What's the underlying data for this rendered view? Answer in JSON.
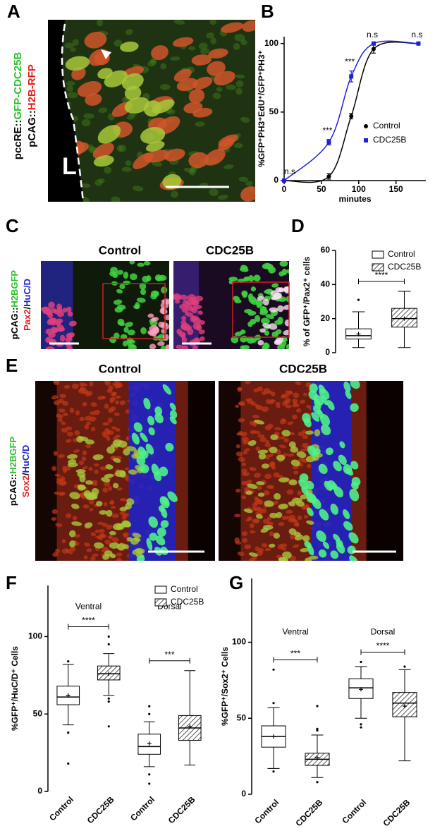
{
  "panel_letters": [
    "A",
    "B",
    "C",
    "D",
    "E",
    "F",
    "G"
  ],
  "panel_a": {
    "labels": [
      [
        "pccRE::",
        "GFP-CDC25B"
      ],
      [
        "pCAG::",
        "H2B-RFP"
      ]
    ],
    "side": "L"
  },
  "panel_c": {
    "titles": [
      "Control",
      "CDC25B"
    ],
    "labels": [
      [
        "pCAG::",
        "H2BGFP"
      ],
      [
        "Pax2",
        "/",
        "HuC/D"
      ]
    ]
  },
  "panel_e": {
    "titles": [
      "Control",
      "CDC25B"
    ],
    "labels": [
      [
        "pCAG::",
        "H2BGFP"
      ],
      [
        "Sox2",
        "/",
        "HuC/D"
      ]
    ]
  },
  "chart_data": [
    {
      "type": "line",
      "y_label": "%GFP⁺PH3⁺EdU⁺/GFP⁺PH3⁺",
      "x_label": "minutes",
      "xlim": [
        0,
        190
      ],
      "xticks": [
        0,
        50,
        100,
        150
      ],
      "ylim": [
        0,
        105
      ],
      "yticks": [
        0,
        50,
        100
      ],
      "legend": "center right",
      "annotations": [
        "n.s",
        "***",
        "***",
        "n.s",
        "n.s"
      ],
      "series": [
        {
          "name": "Control",
          "color": "#000000",
          "marker": "circle",
          "x": [
            0,
            60,
            90,
            120,
            180
          ],
          "values": [
            0,
            3,
            47,
            96,
            100
          ],
          "errors": [
            0,
            2,
            2,
            3,
            0
          ]
        },
        {
          "name": "CDC25B",
          "color": "#1f1fd6",
          "marker": "square",
          "x": [
            0,
            60,
            90,
            120,
            180
          ],
          "values": [
            0,
            28,
            76,
            100,
            100
          ],
          "errors": [
            0,
            2,
            4,
            0,
            0
          ]
        }
      ]
    },
    {
      "type": "box",
      "y_label": "% of GFP⁺/Pax2⁺ cells",
      "ylim": [
        0,
        60
      ],
      "yticks": [
        0,
        20,
        40,
        60
      ],
      "legend": "upper right",
      "significance": [
        "****"
      ],
      "series": [
        {
          "name": "Control",
          "pattern": "open",
          "stats": [
            {
              "low": 3,
              "q1": 8,
              "median": 10,
              "q3": 14,
              "high": 24,
              "mean": 11,
              "outliers": [
                31
              ]
            }
          ]
        },
        {
          "name": "CDC25B",
          "pattern": "hatched",
          "stats": [
            {
              "low": 3,
              "q1": 15,
              "median": 20,
              "q3": 26,
              "high": 36,
              "mean": 20,
              "outliers": []
            }
          ]
        }
      ]
    },
    {
      "type": "box",
      "y_label": "%GFP⁺/HuC/D⁺ Cells",
      "ylim": [
        0,
        133
      ],
      "yticks": [
        0,
        50,
        100
      ],
      "legend": "upper right",
      "groups": [
        "Ventral",
        "Dorsal"
      ],
      "significance": [
        "****",
        "***"
      ],
      "categories": [
        "Control",
        "CDC25B",
        "Control",
        "CDC25B"
      ],
      "series": [
        {
          "name": "Control",
          "pattern": "open",
          "stats": [
            {
              "low": 43,
              "q1": 56,
              "median": 61,
              "q3": 68,
              "high": 82,
              "mean": 62,
              "outliers": [
                18,
                38,
                84
              ]
            },
            {
              "low": 16,
              "q1": 24,
              "median": 29,
              "q3": 37,
              "high": 45,
              "mean": 31,
              "outliers": [
                5,
                11,
                50,
                55
              ]
            }
          ]
        },
        {
          "name": "CDC25B",
          "pattern": "hatched",
          "stats": [
            {
              "low": 62,
              "q1": 72,
              "median": 76,
              "q3": 81,
              "high": 89,
              "mean": 76,
              "outliers": [
                42,
                58,
                60,
                95,
                100
              ]
            },
            {
              "low": 17,
              "q1": 33,
              "median": 41,
              "q3": 49,
              "high": 78,
              "mean": 42,
              "outliers": []
            }
          ]
        }
      ]
    },
    {
      "type": "box",
      "y_label": "%GFP⁺/Sox2⁺ Cells",
      "ylim": [
        0,
        142
      ],
      "yticks": [
        0,
        50,
        100
      ],
      "groups": [
        "Ventral",
        "Dorsal"
      ],
      "significance": [
        "***",
        "****"
      ],
      "categories": [
        "Control",
        "CDC25B",
        "Control",
        "CDC25B"
      ],
      "series": [
        {
          "pattern": "open",
          "stats": [
            {
              "low": 17,
              "q1": 31,
              "median": 38,
              "q3": 45,
              "high": 57,
              "mean": 38,
              "outliers": [
                15,
                60,
                82
              ]
            },
            {
              "low": 50,
              "q1": 63,
              "median": 70,
              "q3": 76,
              "high": 84,
              "mean": 69,
              "outliers": [
                44,
                46,
                87
              ]
            }
          ]
        },
        {
          "pattern": "hatched",
          "stats": [
            {
              "low": 11,
              "q1": 19,
              "median": 23,
              "q3": 27,
              "high": 39,
              "mean": 24,
              "outliers": [
                8,
                42,
                43,
                58
              ]
            },
            {
              "low": 22,
              "q1": 51,
              "median": 60,
              "q3": 67,
              "high": 82,
              "mean": 58,
              "outliers": [
                84
              ]
            }
          ]
        }
      ]
    }
  ]
}
